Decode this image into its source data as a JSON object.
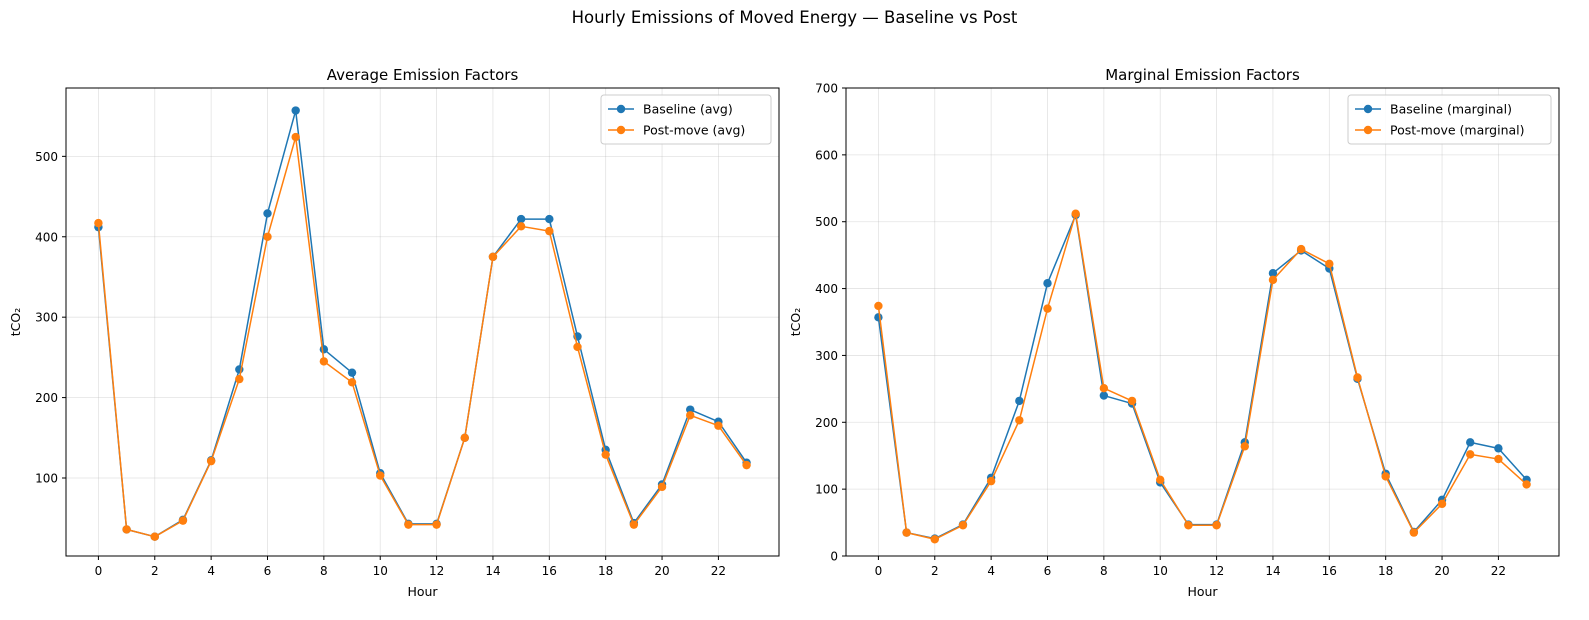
{
  "figure": {
    "suptitle": "Hourly Emissions of Moved Energy — Baseline vs Post"
  },
  "colors": {
    "baseline": "#1f77b4",
    "post": "#ff7f0e"
  },
  "chart_data": [
    {
      "type": "line",
      "title": "Average Emission Factors",
      "xlabel": "Hour",
      "ylabel": "tCO₂",
      "xlim": [
        -1.15,
        24.15
      ],
      "ylim": [
        3,
        585
      ],
      "xticks": [
        0,
        2,
        4,
        6,
        8,
        10,
        12,
        14,
        16,
        18,
        20,
        22
      ],
      "yticks": [
        100,
        200,
        300,
        400,
        500
      ],
      "grid": true,
      "legend_position": "top-right",
      "x": [
        0,
        1,
        2,
        3,
        4,
        5,
        6,
        7,
        8,
        9,
        10,
        11,
        12,
        13,
        14,
        15,
        16,
        17,
        18,
        19,
        20,
        21,
        22,
        23
      ],
      "series": [
        {
          "name": "Baseline (avg)",
          "color": "#1f77b4",
          "values": [
            412,
            36,
            27,
            48,
            122,
            235,
            429,
            557,
            260,
            231,
            106,
            43,
            43,
            150,
            375,
            422,
            422,
            276,
            135,
            44,
            92,
            185,
            170,
            119
          ]
        },
        {
          "name": "Post-move (avg)",
          "color": "#ff7f0e",
          "values": [
            417,
            36,
            27,
            47,
            121,
            223,
            400,
            524,
            245,
            219,
            103,
            42,
            42,
            150,
            375,
            413,
            407,
            263,
            129,
            42,
            89,
            178,
            165,
            116
          ]
        }
      ]
    },
    {
      "type": "line",
      "title": "Marginal Emission Factors",
      "xlabel": "Hour",
      "ylabel": "tCO₂",
      "xlim": [
        -1.15,
        24.15
      ],
      "ylim": [
        0,
        700
      ],
      "xticks": [
        0,
        2,
        4,
        6,
        8,
        10,
        12,
        14,
        16,
        18,
        20,
        22
      ],
      "yticks": [
        0,
        100,
        200,
        300,
        400,
        500,
        600,
        700
      ],
      "grid": true,
      "legend_position": "top-right",
      "x": [
        0,
        1,
        2,
        3,
        4,
        5,
        6,
        7,
        8,
        9,
        10,
        11,
        12,
        13,
        14,
        15,
        16,
        17,
        18,
        19,
        20,
        21,
        22,
        23
      ],
      "series": [
        {
          "name": "Baseline (marginal)",
          "color": "#1f77b4",
          "values": [
            357,
            35,
            26,
            47,
            117,
            232,
            408,
            510,
            240,
            228,
            110,
            47,
            47,
            170,
            423,
            457,
            430,
            265,
            123,
            36,
            84,
            170,
            161,
            114
          ]
        },
        {
          "name": "Post-move (marginal)",
          "color": "#ff7f0e",
          "values": [
            374,
            35,
            25,
            46,
            112,
            203,
            370,
            512,
            251,
            232,
            114,
            46,
            46,
            164,
            413,
            459,
            437,
            267,
            119,
            35,
            78,
            152,
            145,
            107
          ]
        }
      ]
    }
  ]
}
